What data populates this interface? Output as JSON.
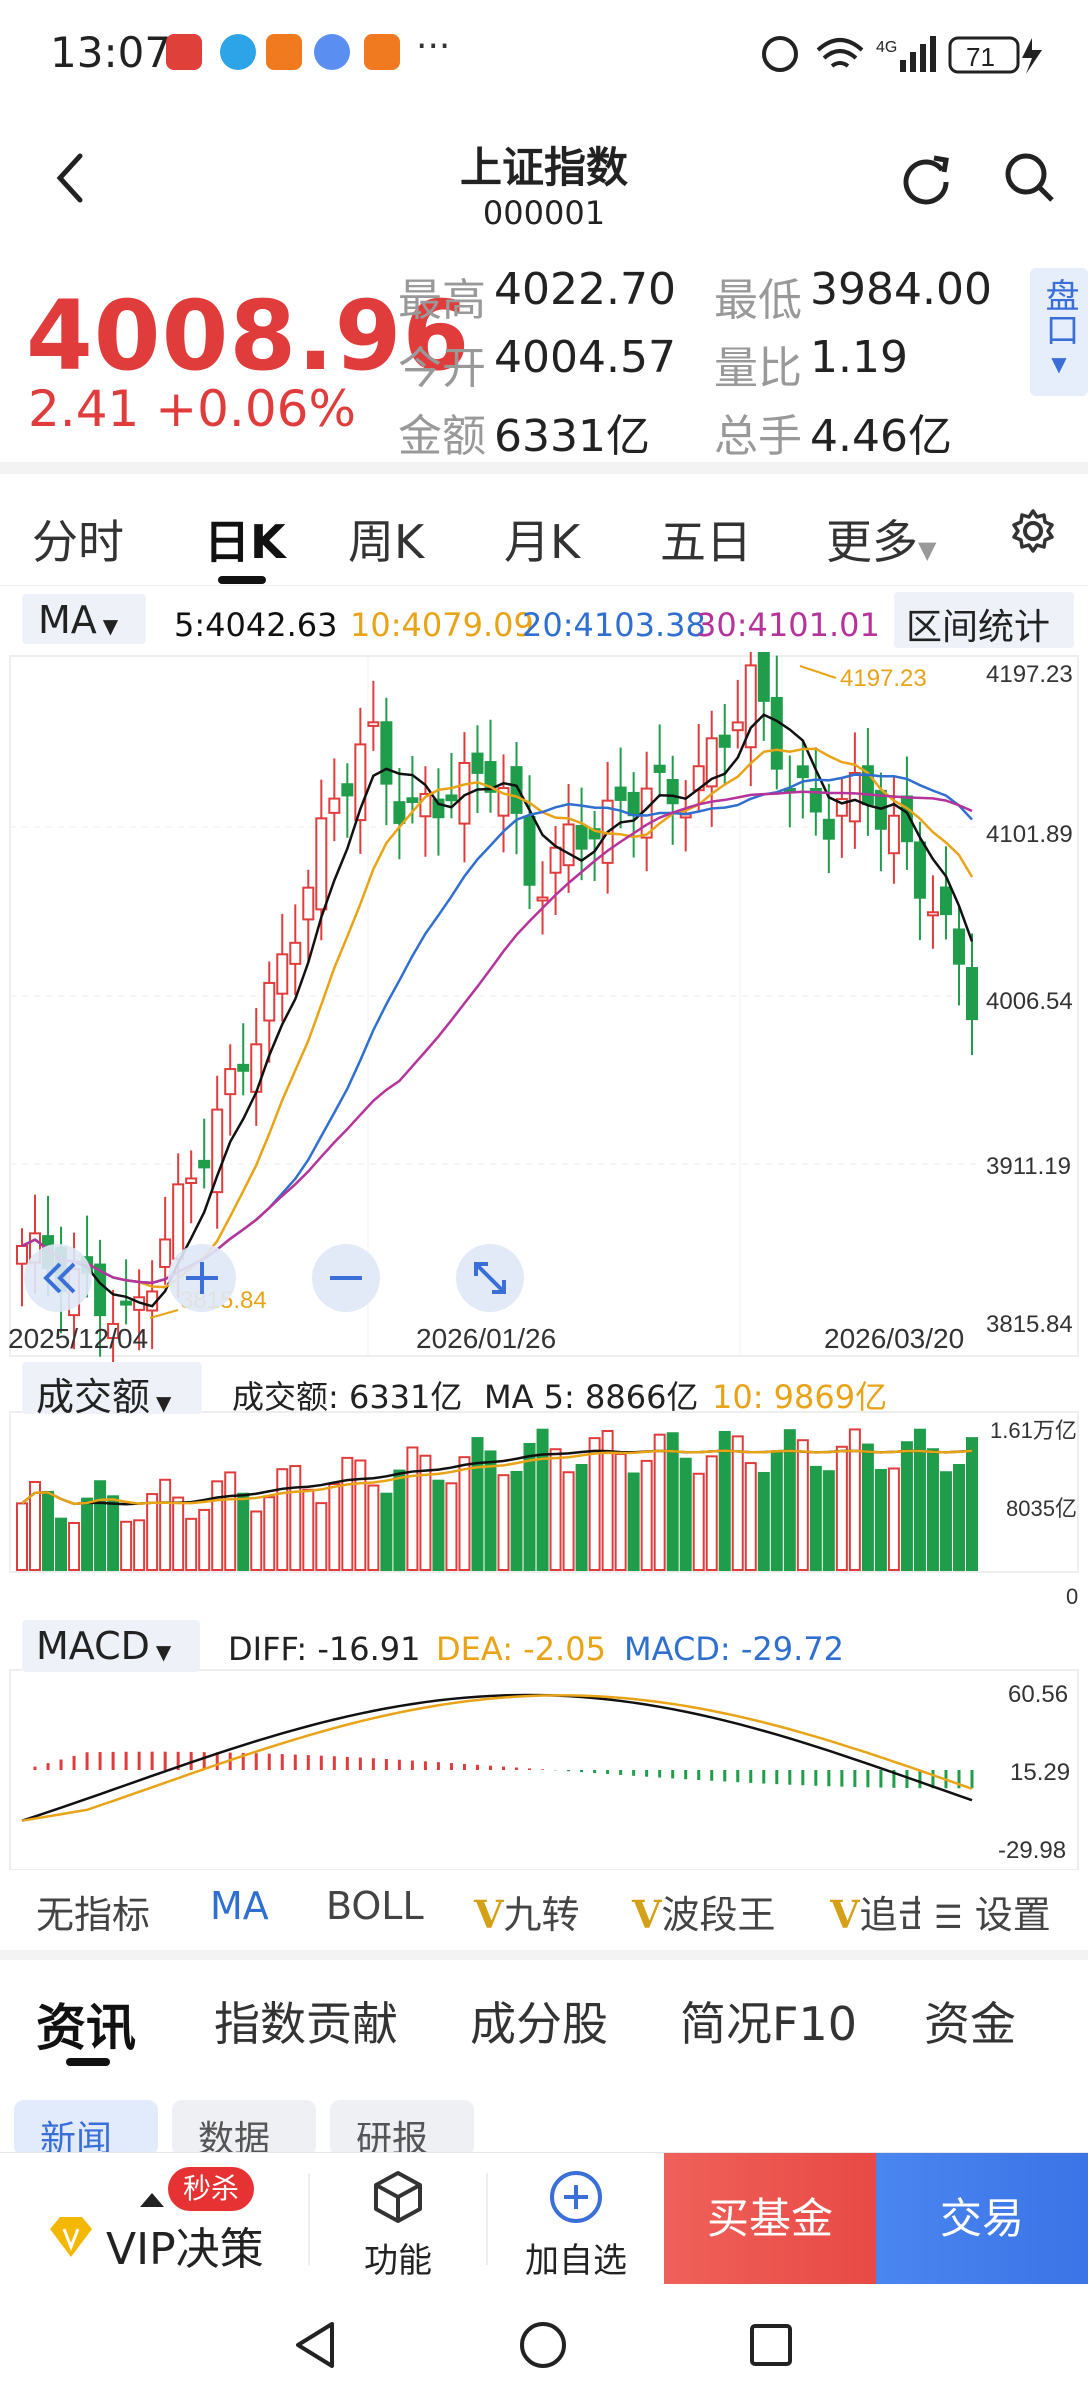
{
  "status": {
    "time": "13:07",
    "battery": "71",
    "network": "4G",
    "dots": "···"
  },
  "header": {
    "title": "上证指数",
    "code": "000001"
  },
  "quote": {
    "price": "4008.96",
    "change": "2.41 +0.06%",
    "high_label": "最高",
    "high": "4022.70",
    "low_label": "最低",
    "low": "3984.00",
    "open_label": "今开",
    "open": "4004.57",
    "ratio_label": "量比",
    "ratio": "1.19",
    "amount_label": "金额",
    "amount": "6331亿",
    "turnover_label": "总手",
    "turnover": "4.46亿",
    "pankou_label": "盘口"
  },
  "tabs": [
    "分时",
    "日K",
    "周K",
    "月K",
    "五日",
    "更多"
  ],
  "ma_bar": {
    "selector": "MA",
    "ma5": "5:4042.63",
    "ma10": "10:4079.09",
    "ma20": "20:4103.38",
    "ma30": "30:4101.01",
    "stats_button": "区间统计"
  },
  "kline": {
    "y_labels": [
      "4197.23",
      "4101.89",
      "4006.54",
      "3911.19",
      "3815.84"
    ],
    "x_labels": [
      "2025/12/04",
      "2026/01/26",
      "2026/03/20"
    ],
    "max_annotation": "4197.23",
    "min_annotation": "3815.84"
  },
  "volume": {
    "selector": "成交额",
    "amount": "成交额: 6331亿",
    "ma5": "MA 5: 8866亿",
    "ma10": "10: 9869亿",
    "y_labels": [
      "1.61万亿",
      "8035亿",
      "0"
    ]
  },
  "macd": {
    "selector": "MACD",
    "diff": "DIFF: -16.91",
    "dea": "DEA: -2.05",
    "macd": "MACD: -29.72",
    "y_labels": [
      "60.56",
      "15.29",
      "-29.98"
    ]
  },
  "indicator_tabs": [
    "无指标",
    "MA",
    "BOLL",
    "九转",
    "波段王",
    "追击",
    "设置"
  ],
  "news_tabs": [
    "资讯",
    "指数贡献",
    "成分股",
    "简况F10",
    "资金"
  ],
  "news_chips": [
    "新闻",
    "数据",
    "研报"
  ],
  "bottom": {
    "vip": "VIP决策",
    "flash_badge": "秒杀",
    "func": "功能",
    "add": "加自选",
    "buy_fund": "买基金",
    "trade": "交易"
  },
  "colors": {
    "up": "#e03c3c",
    "down": "#1f9d4a",
    "ma5": "#111111",
    "ma10": "#e8a317",
    "ma20": "#2f6fd0",
    "ma30": "#b5339a",
    "accent": "#3a6fd8"
  }
}
